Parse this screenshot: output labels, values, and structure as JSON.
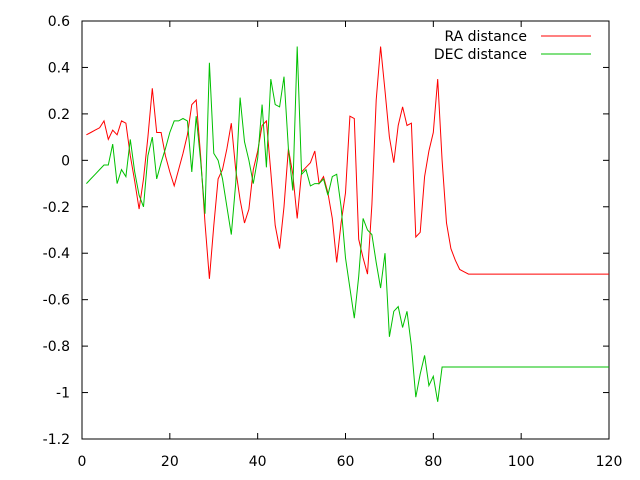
{
  "chart_data": {
    "type": "line",
    "xlim": [
      0,
      120
    ],
    "ylim": [
      -1.2,
      0.6
    ],
    "x_ticks": [
      0,
      20,
      40,
      60,
      80,
      100,
      120
    ],
    "y_ticks": [
      -1.2,
      -1,
      -0.8,
      -0.6,
      -0.4,
      -0.2,
      0,
      0.2,
      0.4,
      0.6
    ],
    "grid": false,
    "legend_position": "top-right",
    "series": [
      {
        "name": "RA distance",
        "color": "#ff0000",
        "x": [
          1,
          2,
          3,
          4,
          5,
          6,
          7,
          8,
          9,
          10,
          11,
          12,
          13,
          14,
          15,
          16,
          17,
          18,
          19,
          20,
          21,
          22,
          23,
          24,
          25,
          26,
          27,
          28,
          29,
          30,
          31,
          32,
          33,
          34,
          35,
          36,
          37,
          38,
          39,
          40,
          41,
          42,
          43,
          44,
          45,
          46,
          47,
          48,
          49,
          50,
          51,
          52,
          53,
          54,
          55,
          56,
          57,
          58,
          59,
          60,
          61,
          62,
          63,
          64,
          65,
          66,
          67,
          68,
          69,
          70,
          71,
          72,
          73,
          74,
          75,
          76,
          77,
          78,
          79,
          80,
          81,
          82,
          83,
          84,
          85,
          86,
          87,
          88,
          89,
          90,
          120
        ],
        "values": [
          0.11,
          0.12,
          0.13,
          0.14,
          0.17,
          0.09,
          0.13,
          0.11,
          0.17,
          0.16,
          0.02,
          -0.09,
          -0.21,
          -0.08,
          0.1,
          0.31,
          0.12,
          0.12,
          0.02,
          -0.05,
          -0.11,
          -0.04,
          0.03,
          0.11,
          0.24,
          0.26,
          0.02,
          -0.27,
          -0.51,
          -0.28,
          -0.08,
          -0.04,
          0.05,
          0.16,
          -0.04,
          -0.17,
          -0.27,
          -0.21,
          -0.04,
          0.04,
          0.15,
          0.17,
          -0.05,
          -0.28,
          -0.38,
          -0.2,
          0.05,
          -0.06,
          -0.25,
          -0.05,
          -0.03,
          -0.01,
          0.04,
          -0.1,
          -0.07,
          -0.14,
          -0.25,
          -0.44,
          -0.27,
          -0.14,
          0.19,
          0.18,
          -0.34,
          -0.42,
          -0.49,
          -0.19,
          0.26,
          0.49,
          0.3,
          0.1,
          -0.01,
          0.15,
          0.23,
          0.15,
          0.16,
          -0.33,
          -0.31,
          -0.07,
          0.04,
          0.12,
          0.35,
          0.0,
          -0.27,
          -0.38,
          -0.43,
          -0.47,
          -0.48,
          -0.49,
          -0.49,
          -0.49,
          -0.49
        ]
      },
      {
        "name": "DEC distance",
        "color": "#00c000",
        "x": [
          1,
          2,
          3,
          4,
          5,
          6,
          7,
          8,
          9,
          10,
          11,
          12,
          13,
          14,
          15,
          16,
          17,
          18,
          19,
          20,
          21,
          22,
          23,
          24,
          25,
          26,
          27,
          28,
          29,
          30,
          31,
          32,
          33,
          34,
          35,
          36,
          37,
          38,
          39,
          40,
          41,
          42,
          43,
          44,
          45,
          46,
          47,
          48,
          49,
          50,
          51,
          52,
          53,
          54,
          55,
          56,
          57,
          58,
          59,
          60,
          61,
          62,
          63,
          64,
          65,
          66,
          67,
          68,
          69,
          70,
          71,
          72,
          73,
          74,
          75,
          76,
          77,
          78,
          79,
          80,
          81,
          82,
          120
        ],
        "values": [
          -0.1,
          -0.08,
          -0.06,
          -0.04,
          -0.02,
          -0.02,
          0.07,
          -0.1,
          -0.04,
          -0.07,
          0.09,
          -0.05,
          -0.15,
          -0.2,
          0.02,
          0.1,
          -0.08,
          -0.01,
          0.05,
          0.12,
          0.17,
          0.17,
          0.18,
          0.17,
          -0.05,
          0.19,
          0.0,
          -0.23,
          0.42,
          0.03,
          0.0,
          -0.08,
          -0.2,
          -0.32,
          -0.1,
          0.27,
          0.08,
          0.0,
          -0.1,
          0.01,
          0.24,
          -0.03,
          0.35,
          0.24,
          0.23,
          0.36,
          0.05,
          -0.13,
          0.49,
          -0.06,
          -0.04,
          -0.11,
          -0.1,
          -0.1,
          -0.08,
          -0.15,
          -0.07,
          -0.06,
          -0.2,
          -0.42,
          -0.55,
          -0.68,
          -0.5,
          -0.25,
          -0.3,
          -0.32,
          -0.44,
          -0.55,
          -0.4,
          -0.76,
          -0.65,
          -0.63,
          -0.72,
          -0.65,
          -0.8,
          -1.02,
          -0.92,
          -0.84,
          -0.97,
          -0.93,
          -1.04,
          -0.89,
          -0.89
        ]
      }
    ]
  }
}
